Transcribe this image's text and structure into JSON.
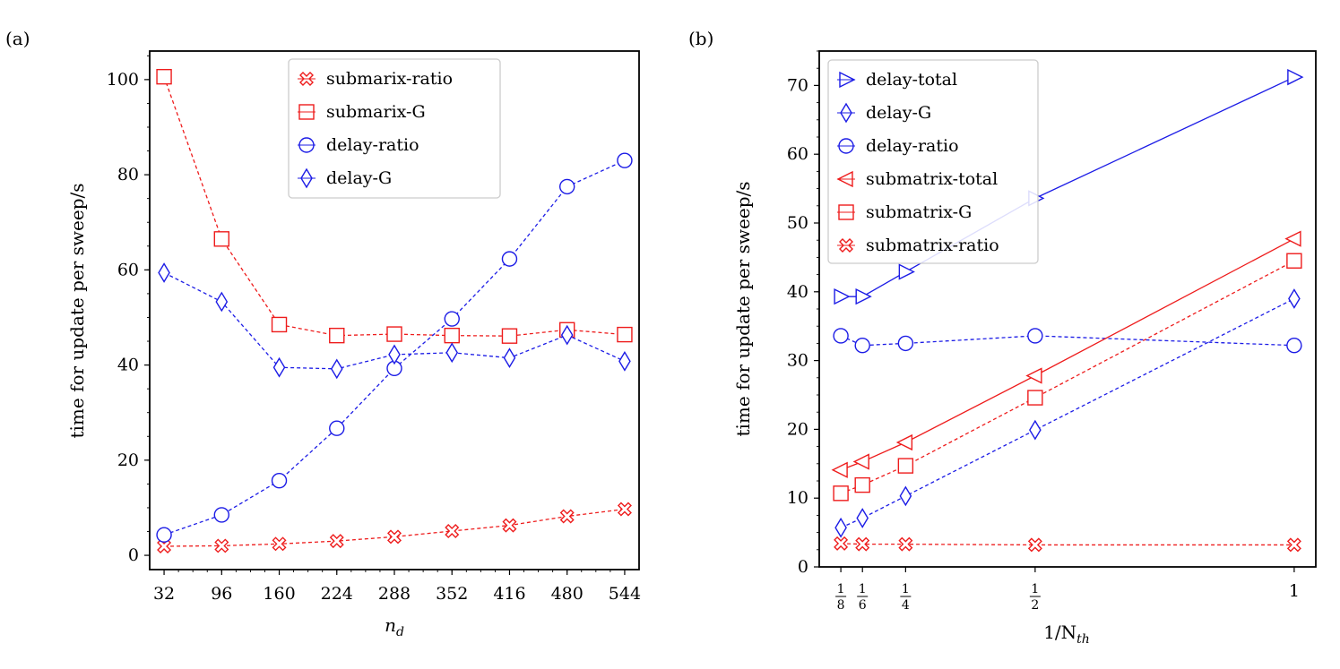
{
  "colors": {
    "red": "#ee1c1c",
    "blue": "#1c1ce6"
  },
  "chart_data": [
    {
      "panel_label": "(a)",
      "type": "line",
      "xlabel_main": "n",
      "xlabel_sub": "d",
      "ylabel": "time for update per sweep/s",
      "xlim": [
        16,
        560
      ],
      "ylim": [
        -3,
        106
      ],
      "x_ticks": [
        32,
        96,
        160,
        224,
        288,
        352,
        416,
        480,
        544
      ],
      "x_tick_labels": [
        "32",
        "96",
        "160",
        "224",
        "288",
        "352",
        "416",
        "480",
        "544"
      ],
      "y_ticks": [
        0,
        20,
        40,
        60,
        80,
        100
      ],
      "y_tick_labels": [
        "0",
        "20",
        "40",
        "60",
        "80",
        "100"
      ],
      "legend": "top-center",
      "series": [
        {
          "name": "submarix-ratio",
          "color": "red",
          "marker": "x-circle",
          "style": "dashed",
          "x": [
            32,
            96,
            160,
            224,
            288,
            352,
            416,
            480,
            544
          ],
          "values": [
            1.9,
            2.0,
            2.4,
            3.0,
            3.9,
            5.1,
            6.3,
            8.2,
            9.7
          ]
        },
        {
          "name": "submarix-G",
          "color": "red",
          "marker": "square",
          "style": "dashed",
          "x": [
            32,
            96,
            160,
            224,
            288,
            352,
            416,
            480,
            544
          ],
          "values": [
            100.6,
            66.5,
            48.5,
            46.2,
            46.5,
            46.2,
            46.1,
            47.4,
            46.4
          ]
        },
        {
          "name": "delay-ratio",
          "color": "blue",
          "marker": "circle",
          "style": "dashed",
          "x": [
            32,
            96,
            160,
            224,
            288,
            352,
            416,
            480,
            544
          ],
          "values": [
            4.3,
            8.5,
            15.7,
            26.7,
            39.3,
            49.7,
            62.3,
            77.5,
            83.0
          ]
        },
        {
          "name": "delay-G",
          "color": "blue",
          "marker": "diamond",
          "style": "dashed",
          "x": [
            32,
            96,
            160,
            224,
            288,
            352,
            416,
            480,
            544
          ],
          "values": [
            59.4,
            53.3,
            39.5,
            39.2,
            42.2,
            42.6,
            41.5,
            46.3,
            40.8
          ]
        }
      ]
    },
    {
      "panel_label": "(b)",
      "type": "line",
      "xlabel_main": "1/N",
      "xlabel_sub": "th",
      "ylabel": "time for update per sweep/s",
      "xlim": [
        0.0833,
        1.0417
      ],
      "ylim": [
        0,
        75
      ],
      "x_ticks": [
        0.125,
        0.1667,
        0.25,
        0.5,
        1
      ],
      "x_tick_labels": [
        {
          "num": "1",
          "den": "8"
        },
        {
          "num": "1",
          "den": "6"
        },
        {
          "num": "1",
          "den": "4"
        },
        {
          "num": "1",
          "den": "2"
        },
        {
          "whole": "1"
        }
      ],
      "y_ticks": [
        0,
        10,
        20,
        30,
        40,
        50,
        60,
        70
      ],
      "y_tick_labels": [
        "0",
        "10",
        "20",
        "30",
        "40",
        "50",
        "60",
        "70"
      ],
      "legend": "top-left",
      "series": [
        {
          "name": "delay-total",
          "color": "blue",
          "marker": "triangle-right",
          "style": "solid",
          "x": [
            0.125,
            0.1667,
            0.25,
            0.5,
            1
          ],
          "values": [
            39.3,
            39.3,
            42.9,
            53.6,
            71.2
          ]
        },
        {
          "name": "delay-G",
          "color": "blue",
          "marker": "diamond",
          "style": "dashed",
          "x": [
            0.125,
            0.1667,
            0.25,
            0.5,
            1
          ],
          "values": [
            5.7,
            7.1,
            10.3,
            19.9,
            39.0
          ]
        },
        {
          "name": "delay-ratio",
          "color": "blue",
          "marker": "circle",
          "style": "dashed",
          "x": [
            0.125,
            0.1667,
            0.25,
            0.5,
            1
          ],
          "values": [
            33.6,
            32.2,
            32.5,
            33.6,
            32.2
          ]
        },
        {
          "name": "submatrix-total",
          "color": "red",
          "marker": "triangle-left",
          "style": "solid",
          "x": [
            0.125,
            0.1667,
            0.25,
            0.5,
            1
          ],
          "values": [
            14.1,
            15.3,
            18.1,
            27.8,
            47.7
          ]
        },
        {
          "name": "submatrix-G",
          "color": "red",
          "marker": "square",
          "style": "dashed",
          "x": [
            0.125,
            0.1667,
            0.25,
            0.5,
            1
          ],
          "values": [
            10.7,
            11.9,
            14.7,
            24.6,
            44.5
          ]
        },
        {
          "name": "submatrix-ratio",
          "color": "red",
          "marker": "x-circle",
          "style": "dashed",
          "x": [
            0.125,
            0.1667,
            0.25,
            0.5,
            1
          ],
          "values": [
            3.4,
            3.3,
            3.3,
            3.2,
            3.2
          ]
        }
      ]
    }
  ]
}
